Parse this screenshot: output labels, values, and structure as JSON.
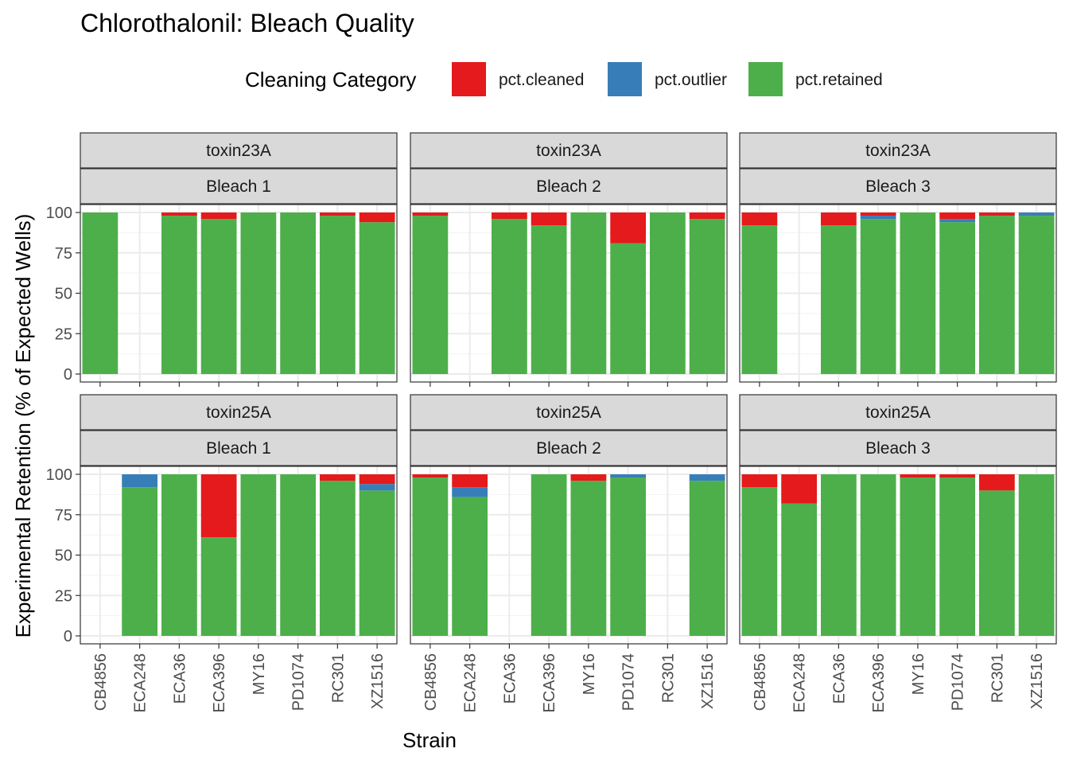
{
  "chart_data": {
    "type": "bar",
    "stacked": true,
    "title": "Chlorothalonil: Bleach Quality",
    "xlabel": "Strain",
    "ylabel": "Experimental Retention (% of Expected Wells)",
    "ylim": [
      0,
      100
    ],
    "yticks": [
      0,
      25,
      50,
      75,
      100
    ],
    "categories": [
      "CB4856",
      "ECA248",
      "ECA36",
      "ECA396",
      "MY16",
      "PD1074",
      "RC301",
      "XZ1516"
    ],
    "legend": {
      "title": "Cleaning Category",
      "position": "top",
      "entries": [
        {
          "key": "cleaned",
          "label": "pct.cleaned",
          "color": "#E41A1C"
        },
        {
          "key": "outlier",
          "label": "pct.outlier",
          "color": "#377EB8"
        },
        {
          "key": "retained",
          "label": "pct.retained",
          "color": "#4DAF4A"
        }
      ]
    },
    "facets": [
      {
        "toxin": "toxin23A",
        "bleach": "Bleach 1",
        "bars": [
          {
            "retained": 100,
            "outlier": 0,
            "cleaned": 0
          },
          null,
          {
            "retained": 98,
            "outlier": 0,
            "cleaned": 2
          },
          {
            "retained": 96,
            "outlier": 0,
            "cleaned": 4
          },
          {
            "retained": 100,
            "outlier": 0,
            "cleaned": 0
          },
          {
            "retained": 100,
            "outlier": 0,
            "cleaned": 0
          },
          {
            "retained": 98,
            "outlier": 0,
            "cleaned": 2
          },
          {
            "retained": 94,
            "outlier": 0,
            "cleaned": 6
          }
        ]
      },
      {
        "toxin": "toxin23A",
        "bleach": "Bleach 2",
        "bars": [
          {
            "retained": 98,
            "outlier": 0,
            "cleaned": 2
          },
          null,
          {
            "retained": 96,
            "outlier": 0,
            "cleaned": 4
          },
          {
            "retained": 92,
            "outlier": 0,
            "cleaned": 8
          },
          {
            "retained": 100,
            "outlier": 0,
            "cleaned": 0
          },
          {
            "retained": 81,
            "outlier": 0,
            "cleaned": 19
          },
          {
            "retained": 100,
            "outlier": 0,
            "cleaned": 0
          },
          {
            "retained": 96,
            "outlier": 0,
            "cleaned": 4
          }
        ]
      },
      {
        "toxin": "toxin23A",
        "bleach": "Bleach 3",
        "bars": [
          {
            "retained": 92,
            "outlier": 0,
            "cleaned": 8
          },
          null,
          {
            "retained": 92,
            "outlier": 0,
            "cleaned": 8
          },
          {
            "retained": 96,
            "outlier": 2,
            "cleaned": 2
          },
          {
            "retained": 100,
            "outlier": 0,
            "cleaned": 0
          },
          {
            "retained": 94,
            "outlier": 2,
            "cleaned": 4
          },
          {
            "retained": 98,
            "outlier": 0,
            "cleaned": 2
          },
          {
            "retained": 98,
            "outlier": 2,
            "cleaned": 0
          }
        ]
      },
      {
        "toxin": "toxin25A",
        "bleach": "Bleach 1",
        "bars": [
          null,
          {
            "retained": 92,
            "outlier": 8,
            "cleaned": 0
          },
          {
            "retained": 100,
            "outlier": 0,
            "cleaned": 0
          },
          {
            "retained": 61,
            "outlier": 0,
            "cleaned": 39
          },
          {
            "retained": 100,
            "outlier": 0,
            "cleaned": 0
          },
          {
            "retained": 100,
            "outlier": 0,
            "cleaned": 0
          },
          {
            "retained": 96,
            "outlier": 0,
            "cleaned": 4
          },
          {
            "retained": 90,
            "outlier": 4,
            "cleaned": 6
          }
        ]
      },
      {
        "toxin": "toxin25A",
        "bleach": "Bleach 2",
        "bars": [
          {
            "retained": 98,
            "outlier": 0,
            "cleaned": 2
          },
          {
            "retained": 86,
            "outlier": 6,
            "cleaned": 8
          },
          null,
          {
            "retained": 100,
            "outlier": 0,
            "cleaned": 0
          },
          {
            "retained": 96,
            "outlier": 0,
            "cleaned": 4
          },
          {
            "retained": 98,
            "outlier": 2,
            "cleaned": 0
          },
          null,
          {
            "retained": 96,
            "outlier": 4,
            "cleaned": 0
          }
        ]
      },
      {
        "toxin": "toxin25A",
        "bleach": "Bleach 3",
        "bars": [
          {
            "retained": 92,
            "outlier": 0,
            "cleaned": 8
          },
          {
            "retained": 82,
            "outlier": 0,
            "cleaned": 18
          },
          {
            "retained": 100,
            "outlier": 0,
            "cleaned": 0
          },
          {
            "retained": 100,
            "outlier": 0,
            "cleaned": 0
          },
          {
            "retained": 98,
            "outlier": 0,
            "cleaned": 2
          },
          {
            "retained": 98,
            "outlier": 0,
            "cleaned": 2
          },
          {
            "retained": 90,
            "outlier": 0,
            "cleaned": 10
          },
          {
            "retained": 100,
            "outlier": 0,
            "cleaned": 0
          }
        ]
      }
    ]
  }
}
